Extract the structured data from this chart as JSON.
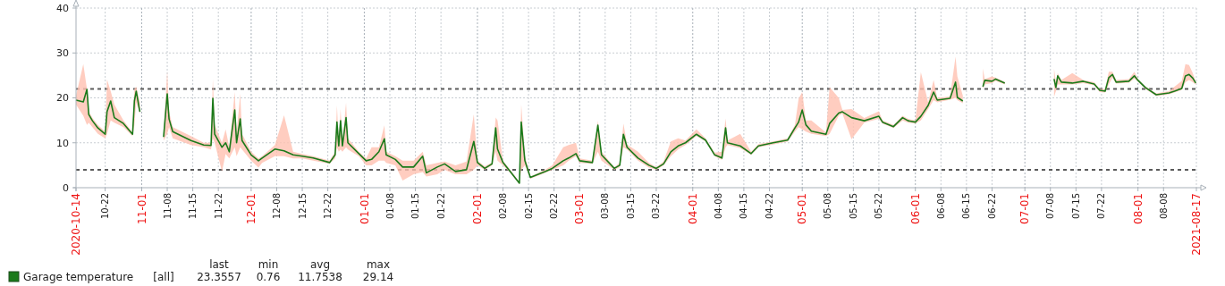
{
  "chart_data": {
    "type": "line",
    "x": [
      "2020-10-14",
      "2020-10-16",
      "2020-10-17",
      "2020-10-17T12:00",
      "2020-10-18T12:00",
      "2020-10-20",
      "2020-10-22",
      "2020-10-22T12:00",
      "2020-10-23T12:00",
      "2020-10-24T12:00",
      "2020-10-27",
      "2020-10-29T12:00",
      "2020-10-30",
      "2020-10-30T12:00",
      "2020-10-31T12:00",
      "2020-11-03",
      "2020-11-07",
      "2020-11-08",
      "2020-11-08T12:00",
      "2020-11-09T12:00",
      "2020-11-14T12:00",
      "2020-11-18",
      "2020-11-20",
      "2020-11-20T12:00",
      "2020-11-21",
      "2020-11-23",
      "2020-11-24",
      "2020-11-25",
      "2020-11-26T12:00",
      "2020-11-27",
      "2020-11-28",
      "2020-11-28T12:00",
      "2020-12-01",
      "2020-12-03",
      "2020-12-04",
      "2020-12-07T12:00",
      "2020-12-10",
      "2020-12-12T12:00",
      "2020-12-15",
      "2020-12-18",
      "2020-12-22T12:00",
      "2020-12-24",
      "2020-12-24T12:00",
      "2020-12-25",
      "2020-12-25T12:00",
      "2020-12-26",
      "2020-12-27",
      "2020-12-27T12:00",
      "2020-12-30T12:00",
      "2021-01-01T12:00",
      "2021-01-03",
      "2021-01-05",
      "2021-01-06T12:00",
      "2021-01-07",
      "2021-01-09T12:00",
      "2021-01-11T12:00",
      "2021-01-14T12:00",
      "2021-01-17",
      "2021-01-18",
      "2021-01-21",
      "2021-01-23",
      "2021-01-26",
      "2021-01-29",
      "2021-01-31",
      "2021-02-01",
      "2021-02-03",
      "2021-02-05",
      "2021-02-06",
      "2021-02-06T12:00",
      "2021-02-08",
      "2021-02-10",
      "2021-02-12T12:00",
      "2021-02-13",
      "2021-02-14",
      "2021-02-15T12:00",
      "2021-02-19T12:00",
      "2021-02-21T12:00",
      "2021-02-24T12:00",
      "2021-02-26",
      "2021-02-28",
      "2021-03-01",
      "2021-03-04T12:00",
      "2021-03-06",
      "2021-03-07",
      "2021-03-10T12:00",
      "2021-03-12",
      "2021-03-13",
      "2021-03-14",
      "2021-03-17",
      "2021-03-20",
      "2021-03-22",
      "2021-03-24",
      "2021-03-26",
      "2021-03-28",
      "2021-03-30",
      "2021-04-02",
      "2021-04-04T12:00",
      "2021-04-07",
      "2021-04-09",
      "2021-04-10",
      "2021-04-10T12:00",
      "2021-04-14",
      "2021-04-17",
      "2021-04-19",
      "2021-04-23",
      "2021-04-27",
      "2021-04-29",
      "2021-04-30",
      "2021-05-01",
      "2021-05-02",
      "2021-05-03T12:00",
      "2021-05-07T12:00",
      "2021-05-08T12:00",
      "2021-05-11",
      "2021-05-12",
      "2021-05-14T12:00",
      "2021-05-18",
      "2021-05-22",
      "2021-05-23",
      "2021-05-26",
      "2021-05-28T12:00",
      "2021-05-30",
      "2021-06-01",
      "2021-06-02T12:00",
      "2021-06-04T12:00",
      "2021-06-06",
      "2021-06-07",
      "2021-06-10T12:00",
      "2021-06-12",
      "2021-06-12T12:00",
      "2021-06-14",
      "2021-06-16",
      "2021-06-19T12:00",
      "2021-06-20",
      "2021-06-22",
      "2021-06-23",
      "2021-06-25T12:00",
      "2021-07-01",
      "2021-07-09",
      "2021-07-09T12:00",
      "2021-07-10",
      "2021-07-11",
      "2021-07-14",
      "2021-07-17",
      "2021-07-20",
      "2021-07-21T12:00",
      "2021-07-23",
      "2021-07-24",
      "2021-07-25",
      "2021-07-26",
      "2021-07-29T12:00",
      "2021-07-31",
      "2021-08-01",
      "2021-08-03",
      "2021-08-06",
      "2021-08-09T12:00",
      "2021-08-11",
      "2021-08-13",
      "2021-08-14",
      "2021-08-15",
      "2021-08-16",
      "2021-08-16T20:00"
    ],
    "series": [
      {
        "name": "Garage temperature",
        "color": "#1a7a1a",
        "values": [
          19.5,
          19.1,
          21.9,
          16.3,
          14.9,
          13.3,
          11.9,
          16.9,
          19.3,
          15.6,
          14.3,
          11.9,
          19.3,
          21.5,
          16.9,
          null,
          11.3,
          20.9,
          15.3,
          12.5,
          10.5,
          9.5,
          9.4,
          19.9,
          11.9,
          9.0,
          10.0,
          8.0,
          17.3,
          10.0,
          15.3,
          10.5,
          7.3,
          6.0,
          6.6,
          8.6,
          8.2,
          7.3,
          7.0,
          6.6,
          5.6,
          7.3,
          14.6,
          9.3,
          14.9,
          9.3,
          15.6,
          10.0,
          7.6,
          6.0,
          6.3,
          8.0,
          10.9,
          7.3,
          6.3,
          4.6,
          4.6,
          7.0,
          3.3,
          4.6,
          5.3,
          3.6,
          4.0,
          10.3,
          5.6,
          4.3,
          5.3,
          13.3,
          8.6,
          5.6,
          3.6,
          1.0,
          14.6,
          6.0,
          2.3,
          3.6,
          4.3,
          6.0,
          6.6,
          7.6,
          6.0,
          5.6,
          13.9,
          7.3,
          4.3,
          5.0,
          11.9,
          9.0,
          6.6,
          5.0,
          4.3,
          5.3,
          8.0,
          9.3,
          10.0,
          11.9,
          10.6,
          7.3,
          6.6,
          13.3,
          10.0,
          9.3,
          7.6,
          9.3,
          10.0,
          10.6,
          13.3,
          14.6,
          17.3,
          14.0,
          12.6,
          11.9,
          14.3,
          16.6,
          16.9,
          15.6,
          14.9,
          15.9,
          14.6,
          13.6,
          15.6,
          14.9,
          14.6,
          15.9,
          18.3,
          21.3,
          19.5,
          19.9,
          23.5,
          20.1,
          19.3,
          null,
          22.5,
          23.9,
          23.7,
          24.2,
          23.3,
          null,
          24.2,
          22.3,
          24.9,
          23.5,
          23.3,
          23.7,
          23.1,
          21.7,
          21.5,
          24.5,
          25.2,
          23.5,
          23.7,
          24.9,
          23.9,
          22.3,
          20.7,
          21.1,
          21.5,
          22.1,
          24.9,
          25.2,
          24.4,
          23.3
        ],
        "upper": [
          20.5,
          27.5,
          22,
          17,
          15.5,
          14,
          12.5,
          24.1,
          21.5,
          18.5,
          15,
          12.3,
          22,
          22.5,
          19,
          null,
          12,
          25.9,
          17,
          13.5,
          11.5,
          10,
          10,
          24.2,
          14,
          10,
          13,
          9,
          21.3,
          12,
          20.9,
          12,
          8,
          6.5,
          7,
          9.5,
          16.1,
          8,
          7.5,
          7,
          6,
          8,
          18.3,
          10,
          17.5,
          10,
          18.9,
          11,
          8,
          6.5,
          9,
          9,
          13.9,
          8,
          7,
          6,
          6,
          8,
          5,
          5.5,
          5.8,
          5,
          5.8,
          16.3,
          6,
          4.8,
          5.6,
          15.6,
          15,
          6,
          4,
          1.3,
          18.5,
          7,
          2.5,
          4,
          5,
          9,
          9.5,
          10,
          6.5,
          6,
          14.9,
          8,
          4.6,
          5.5,
          14.3,
          9.6,
          8,
          5.5,
          4.6,
          5.8,
          10.3,
          11,
          10.5,
          13,
          11,
          7.8,
          8,
          15.4,
          10.5,
          12,
          8,
          9.7,
          10.3,
          11,
          14,
          19.8,
          21.3,
          15,
          15,
          12.3,
          22.4,
          20,
          17.3,
          17.5,
          15.5,
          17,
          15,
          14,
          16,
          15.3,
          15,
          25.7,
          19,
          24,
          20,
          20.3,
          29.14,
          24.8,
          20.5,
          null,
          26.5,
          24.2,
          24.8,
          24.5,
          23.6,
          null,
          26.5,
          23.5,
          25.5,
          24,
          25.5,
          24,
          23.5,
          22,
          22,
          25.8,
          25.8,
          24,
          24.2,
          25.8,
          24.2,
          22.6,
          21,
          21.5,
          22.5,
          23.8,
          27.5,
          27.3,
          25.5,
          23.6
        ],
        "lower": [
          18.5,
          16,
          14,
          14.5,
          13.5,
          12,
          11,
          12,
          15,
          14.5,
          13.5,
          11.5,
          14,
          19,
          16.5,
          null,
          10.5,
          12,
          13.5,
          11,
          9.5,
          9,
          8.5,
          11,
          10,
          3.6,
          7.5,
          6.5,
          9,
          7,
          9,
          8.5,
          6,
          4.5,
          5.5,
          7,
          7,
          6.5,
          6.5,
          6,
          5.3,
          6.5,
          9,
          8,
          8.5,
          8,
          9,
          8.5,
          7,
          5,
          5,
          6,
          6,
          5.5,
          5,
          1.6,
          3,
          3.5,
          2.5,
          3,
          4,
          3,
          3,
          4,
          5,
          4,
          5,
          8,
          6,
          5,
          3.3,
          0.76,
          4,
          5,
          2,
          3.3,
          4,
          5,
          6,
          7,
          5.5,
          5.3,
          8,
          6,
          4,
          4.6,
          9,
          8.5,
          6,
          4.5,
          4,
          5,
          7,
          8.5,
          9.5,
          11.5,
          10.3,
          7,
          6.2,
          9,
          9.5,
          8.8,
          7.3,
          9,
          9.6,
          10.3,
          12.5,
          13.5,
          13,
          12.5,
          12,
          11.5,
          12,
          16,
          16.5,
          10.8,
          14.5,
          15.3,
          14.3,
          13.3,
          15,
          14.5,
          14.3,
          15,
          17.5,
          19.5,
          19,
          19.6,
          20,
          19.5,
          18.8,
          null,
          22,
          23,
          23.3,
          23.8,
          23,
          null,
          20.2,
          21.5,
          23,
          23,
          23,
          23.3,
          22.8,
          21.3,
          21.2,
          23,
          24.5,
          23.2,
          23.4,
          24.3,
          23.6,
          22,
          20.4,
          20.8,
          21.2,
          21.8,
          23.5,
          24,
          23.5,
          23
        ]
      }
    ],
    "xlim": [
      "2020-10-14",
      "2021-08-17"
    ],
    "xticks": [
      {
        "value": "2020-10-14",
        "label": "2020-10-14"
      },
      {
        "value": "2020-10-22",
        "label": "10-22"
      },
      {
        "value": "2020-11-01",
        "label": "11-01"
      },
      {
        "value": "2020-11-08",
        "label": "11-08"
      },
      {
        "value": "2020-11-15",
        "label": "11-15"
      },
      {
        "value": "2020-11-22",
        "label": "11-22"
      },
      {
        "value": "2020-12-01",
        "label": "12-01"
      },
      {
        "value": "2020-12-08",
        "label": "12-08"
      },
      {
        "value": "2020-12-15",
        "label": "12-15"
      },
      {
        "value": "2020-12-22",
        "label": "12-22"
      },
      {
        "value": "2021-01-01",
        "label": "01-01"
      },
      {
        "value": "2021-01-08",
        "label": "01-08"
      },
      {
        "value": "2021-01-15",
        "label": "01-15"
      },
      {
        "value": "2021-01-22",
        "label": "01-22"
      },
      {
        "value": "2021-02-01",
        "label": "02-01"
      },
      {
        "value": "2021-02-08",
        "label": "02-08"
      },
      {
        "value": "2021-02-15",
        "label": "02-15"
      },
      {
        "value": "2021-02-22",
        "label": "02-22"
      },
      {
        "value": "2021-03-01",
        "label": "03-01"
      },
      {
        "value": "2021-03-08",
        "label": "03-08"
      },
      {
        "value": "2021-03-15",
        "label": "03-15"
      },
      {
        "value": "2021-03-22",
        "label": "03-22"
      },
      {
        "value": "2021-04-01",
        "label": "04-01"
      },
      {
        "value": "2021-04-08",
        "label": "04-08"
      },
      {
        "value": "2021-04-15",
        "label": "04-15"
      },
      {
        "value": "2021-04-22",
        "label": "04-22"
      },
      {
        "value": "2021-05-01",
        "label": "05-01"
      },
      {
        "value": "2021-05-08",
        "label": "05-08"
      },
      {
        "value": "2021-05-15",
        "label": "05-15"
      },
      {
        "value": "2021-05-22",
        "label": "05-22"
      },
      {
        "value": "2021-06-01",
        "label": "06-01"
      },
      {
        "value": "2021-06-08",
        "label": "06-08"
      },
      {
        "value": "2021-06-15",
        "label": "06-15"
      },
      {
        "value": "2021-06-22",
        "label": "06-22"
      },
      {
        "value": "2021-07-01",
        "label": "07-01"
      },
      {
        "value": "2021-07-08",
        "label": "07-08"
      },
      {
        "value": "2021-07-15",
        "label": "07-15"
      },
      {
        "value": "2021-07-22",
        "label": "07-22"
      },
      {
        "value": "2021-08-01",
        "label": "08-01"
      },
      {
        "value": "2021-08-08",
        "label": "08-08"
      },
      {
        "value": "2021-08-17",
        "label": "2021-08-17"
      }
    ],
    "ylim": [
      0,
      40
    ],
    "yticks": [
      0,
      10,
      20,
      30,
      40
    ],
    "grid": true,
    "legend": "bottom left",
    "ref_lines": [
      {
        "axis": "y",
        "value": 22,
        "color": "#5a5a5a",
        "line_style": "dashed"
      },
      {
        "axis": "y",
        "value": 4,
        "color": "#5a5a5a",
        "line_style": "dashed"
      }
    ],
    "annotations": [
      "[all]",
      "last",
      "min",
      "avg",
      "max",
      "23.3557",
      "0.76",
      "11.7538",
      "29.14"
    ]
  }
}
